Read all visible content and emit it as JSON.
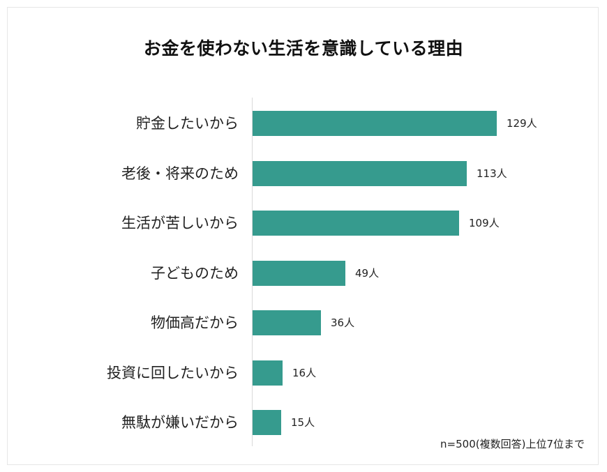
{
  "chart": {
    "title": "お金を使わない生活を意識している理由",
    "note": "n=500(複数回答)上位7位まで",
    "bar_color": "#369b8e",
    "unit": "人"
  },
  "chart_data": {
    "type": "bar",
    "orientation": "horizontal",
    "title": "お金を使わない生活を意識している理由",
    "categories": [
      "貯金したいから",
      "老後・将来のため",
      "生活が苦しいから",
      "子どものため",
      "物価高だから",
      "投資に回したいから",
      "無駄が嫌いだから"
    ],
    "values": [
      129,
      113,
      109,
      49,
      36,
      16,
      15
    ],
    "labels": [
      "129人",
      "113人",
      "109人",
      "49人",
      "36人",
      "16人",
      "15人"
    ],
    "xlabel": "",
    "ylabel": "",
    "unit": "人",
    "annotation": "n=500(複数回答)上位7位まで",
    "grid": false,
    "legend": null
  }
}
